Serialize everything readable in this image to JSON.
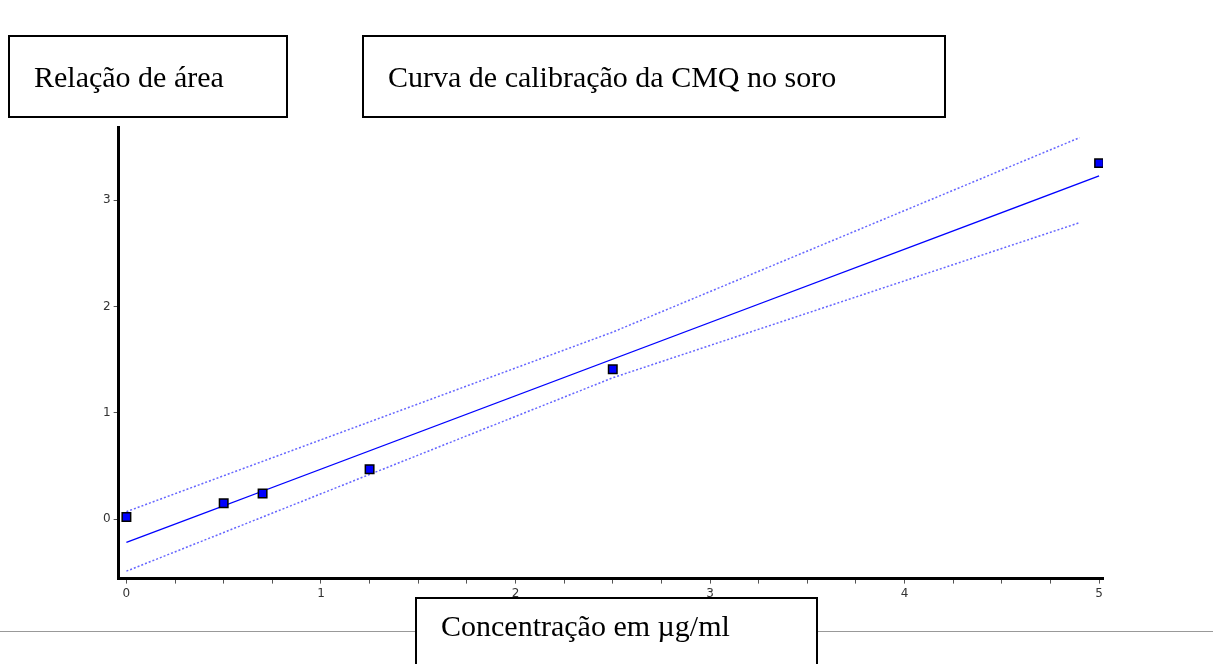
{
  "chart_data": {
    "type": "scatter",
    "title": "Curva de calibração da CMQ no soro",
    "xlabel": "Concentração em µg/ml",
    "ylabel": "Relação de área",
    "xlim": [
      -0.04,
      5.02
    ],
    "ylim": [
      -0.56,
      3.69
    ],
    "xticks": [
      0,
      {
        "value": 0.25,
        "label": null
      },
      {
        "value": 0.5,
        "label": null
      },
      {
        "value": 0.75,
        "label": null
      },
      1,
      {
        "value": 1.25,
        "label": null
      },
      {
        "value": 1.5,
        "label": null
      },
      {
        "value": 1.75,
        "label": null
      },
      2,
      {
        "value": 2.25,
        "label": null
      },
      {
        "value": 2.5,
        "label": null
      },
      {
        "value": 2.75,
        "label": null
      },
      3,
      {
        "value": 3.25,
        "label": null
      },
      {
        "value": 3.5,
        "label": null
      },
      {
        "value": 3.75,
        "label": null
      },
      4,
      {
        "value": 4.25,
        "label": null
      },
      {
        "value": 4.5,
        "label": null
      },
      {
        "value": 4.75,
        "label": null
      },
      5
    ],
    "yticks": [
      0,
      1,
      2,
      3
    ],
    "grid": false,
    "legend": false,
    "marker": "square",
    "series": [
      {
        "type": "scatter",
        "color": "#0000ff",
        "x": [
          0,
          0.5,
          0.7,
          1.25,
          2.5,
          5
        ],
        "values": [
          0.02,
          0.15,
          0.24,
          0.47,
          1.41,
          3.35
        ]
      },
      {
        "type": "line",
        "color": "#0000ff",
        "marker": "none",
        "line_style": "solid",
        "x": [
          0,
          5
        ],
        "values": [
          -0.22,
          3.23
        ]
      },
      {
        "type": "line",
        "color": "#6666ff",
        "marker": "none",
        "line_style": "dotted",
        "x": [
          0,
          2.5,
          4.9
        ],
        "values": [
          0.07,
          1.76,
          3.59
        ]
      },
      {
        "type": "line",
        "color": "#6666ff",
        "marker": "none",
        "line_style": "dotted",
        "x": [
          0,
          2.5,
          4.9
        ],
        "values": [
          -0.49,
          1.33,
          2.79
        ]
      }
    ]
  }
}
